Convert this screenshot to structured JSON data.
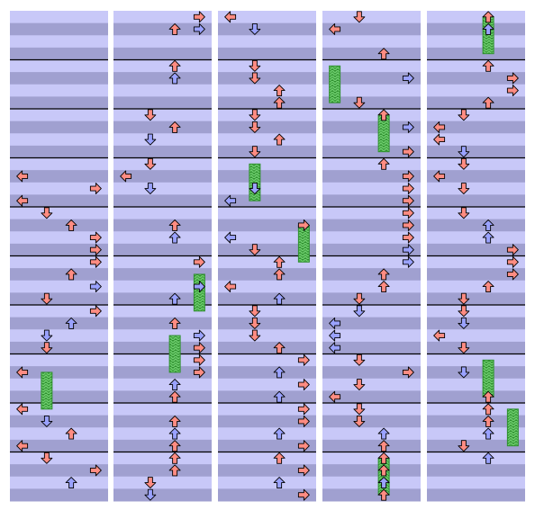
{
  "colors": {
    "background": "#ffffff",
    "stripe_light": "#c8c8f8",
    "stripe_dark": "#a0a0d0",
    "measure_line": "#000000",
    "arrow_red": "#ff8c82",
    "arrow_blue": "#9aa2ff",
    "arrow_outline": "#000000",
    "hold_green": "#2f8f2f",
    "hold_pattern": "#6fcf6f"
  },
  "chart_data": {
    "type": "other",
    "description_kind": "step-chart",
    "columns": 5,
    "lanes_per_column": 4,
    "lane_directions": [
      "left",
      "down",
      "up",
      "right"
    ],
    "measures_per_column": 10,
    "rows_per_measure": 4,
    "columns_data": [
      {
        "notes": [
          {
            "row": 13,
            "lane": 0,
            "color": "red"
          },
          {
            "row": 14,
            "lane": 3,
            "color": "red"
          },
          {
            "row": 15,
            "lane": 0,
            "color": "red"
          },
          {
            "row": 16,
            "lane": 1,
            "color": "red"
          },
          {
            "row": 17,
            "lane": 2,
            "color": "red"
          },
          {
            "row": 18,
            "lane": 3,
            "color": "red"
          },
          {
            "row": 19,
            "lane": 3,
            "color": "red"
          },
          {
            "row": 20,
            "lane": 3,
            "color": "red"
          },
          {
            "row": 21,
            "lane": 2,
            "color": "red"
          },
          {
            "row": 22,
            "lane": 3,
            "color": "blue"
          },
          {
            "row": 23,
            "lane": 1,
            "color": "red"
          },
          {
            "row": 24,
            "lane": 3,
            "color": "red"
          },
          {
            "row": 25,
            "lane": 2,
            "color": "blue"
          },
          {
            "row": 26,
            "lane": 1,
            "color": "blue"
          },
          {
            "row": 27,
            "lane": 1,
            "color": "red"
          },
          {
            "row": 29,
            "lane": 0,
            "color": "red"
          },
          {
            "row": 32,
            "lane": 0,
            "color": "red"
          },
          {
            "row": 33,
            "lane": 1,
            "color": "blue"
          },
          {
            "row": 34,
            "lane": 2,
            "color": "red"
          },
          {
            "row": 35,
            "lane": 0,
            "color": "red"
          },
          {
            "row": 36,
            "lane": 1,
            "color": "red"
          },
          {
            "row": 37,
            "lane": 3,
            "color": "red"
          },
          {
            "row": 38,
            "lane": 2,
            "color": "blue"
          }
        ],
        "holds": [
          {
            "start": 29,
            "end": 32,
            "lane": 1
          }
        ]
      },
      {
        "notes": [
          {
            "row": 0,
            "lane": 3,
            "color": "red"
          },
          {
            "row": 1,
            "lane": 2,
            "color": "red"
          },
          {
            "row": 1,
            "lane": 3,
            "color": "blue"
          },
          {
            "row": 4,
            "lane": 2,
            "color": "red"
          },
          {
            "row": 5,
            "lane": 2,
            "color": "blue"
          },
          {
            "row": 8,
            "lane": 1,
            "color": "red"
          },
          {
            "row": 9,
            "lane": 2,
            "color": "red"
          },
          {
            "row": 10,
            "lane": 1,
            "color": "blue"
          },
          {
            "row": 12,
            "lane": 1,
            "color": "red"
          },
          {
            "row": 13,
            "lane": 0,
            "color": "red"
          },
          {
            "row": 14,
            "lane": 1,
            "color": "blue"
          },
          {
            "row": 17,
            "lane": 2,
            "color": "red"
          },
          {
            "row": 18,
            "lane": 2,
            "color": "blue"
          },
          {
            "row": 20,
            "lane": 3,
            "color": "red"
          },
          {
            "row": 22,
            "lane": 3,
            "color": "blue"
          },
          {
            "row": 23,
            "lane": 2,
            "color": "blue"
          },
          {
            "row": 25,
            "lane": 2,
            "color": "red"
          },
          {
            "row": 26,
            "lane": 3,
            "color": "blue"
          },
          {
            "row": 27,
            "lane": 3,
            "color": "red"
          },
          {
            "row": 28,
            "lane": 3,
            "color": "red"
          },
          {
            "row": 29,
            "lane": 3,
            "color": "red"
          },
          {
            "row": 30,
            "lane": 2,
            "color": "blue"
          },
          {
            "row": 31,
            "lane": 2,
            "color": "red"
          },
          {
            "row": 33,
            "lane": 2,
            "color": "red"
          },
          {
            "row": 34,
            "lane": 2,
            "color": "blue"
          },
          {
            "row": 35,
            "lane": 2,
            "color": "red"
          },
          {
            "row": 36,
            "lane": 2,
            "color": "red"
          },
          {
            "row": 37,
            "lane": 2,
            "color": "red"
          },
          {
            "row": 38,
            "lane": 1,
            "color": "red"
          },
          {
            "row": 39,
            "lane": 1,
            "color": "blue"
          }
        ],
        "holds": [
          {
            "start": 21,
            "end": 24,
            "lane": 3
          },
          {
            "start": 26,
            "end": 29,
            "lane": 2
          }
        ]
      },
      {
        "notes": [
          {
            "row": 0,
            "lane": 0,
            "color": "red"
          },
          {
            "row": 1,
            "lane": 1,
            "color": "blue"
          },
          {
            "row": 4,
            "lane": 1,
            "color": "red"
          },
          {
            "row": 5,
            "lane": 1,
            "color": "red"
          },
          {
            "row": 6,
            "lane": 2,
            "color": "red"
          },
          {
            "row": 7,
            "lane": 2,
            "color": "red"
          },
          {
            "row": 8,
            "lane": 1,
            "color": "red"
          },
          {
            "row": 9,
            "lane": 1,
            "color": "red"
          },
          {
            "row": 10,
            "lane": 2,
            "color": "red"
          },
          {
            "row": 11,
            "lane": 1,
            "color": "red"
          },
          {
            "row": 14,
            "lane": 1,
            "color": "blue"
          },
          {
            "row": 15,
            "lane": 0,
            "color": "blue"
          },
          {
            "row": 17,
            "lane": 3,
            "color": "red"
          },
          {
            "row": 18,
            "lane": 0,
            "color": "blue"
          },
          {
            "row": 19,
            "lane": 1,
            "color": "red"
          },
          {
            "row": 20,
            "lane": 2,
            "color": "red"
          },
          {
            "row": 21,
            "lane": 2,
            "color": "red"
          },
          {
            "row": 22,
            "lane": 0,
            "color": "red"
          },
          {
            "row": 23,
            "lane": 2,
            "color": "blue"
          },
          {
            "row": 24,
            "lane": 1,
            "color": "red"
          },
          {
            "row": 25,
            "lane": 1,
            "color": "red"
          },
          {
            "row": 26,
            "lane": 1,
            "color": "red"
          },
          {
            "row": 27,
            "lane": 2,
            "color": "red"
          },
          {
            "row": 28,
            "lane": 3,
            "color": "red"
          },
          {
            "row": 29,
            "lane": 2,
            "color": "blue"
          },
          {
            "row": 30,
            "lane": 3,
            "color": "red"
          },
          {
            "row": 31,
            "lane": 2,
            "color": "blue"
          },
          {
            "row": 32,
            "lane": 3,
            "color": "red"
          },
          {
            "row": 33,
            "lane": 3,
            "color": "red"
          },
          {
            "row": 34,
            "lane": 2,
            "color": "blue"
          },
          {
            "row": 35,
            "lane": 3,
            "color": "red"
          },
          {
            "row": 36,
            "lane": 2,
            "color": "red"
          },
          {
            "row": 37,
            "lane": 3,
            "color": "red"
          },
          {
            "row": 38,
            "lane": 2,
            "color": "blue"
          },
          {
            "row": 39,
            "lane": 3,
            "color": "red"
          }
        ],
        "holds": [
          {
            "start": 12,
            "end": 15,
            "lane": 1
          },
          {
            "start": 17,
            "end": 20,
            "lane": 3
          }
        ]
      },
      {
        "notes": [
          {
            "row": 0,
            "lane": 1,
            "color": "red"
          },
          {
            "row": 1,
            "lane": 0,
            "color": "red"
          },
          {
            "row": 3,
            "lane": 2,
            "color": "red"
          },
          {
            "row": 5,
            "lane": 3,
            "color": "blue"
          },
          {
            "row": 7,
            "lane": 1,
            "color": "red"
          },
          {
            "row": 8,
            "lane": 2,
            "color": "red"
          },
          {
            "row": 9,
            "lane": 3,
            "color": "blue"
          },
          {
            "row": 11,
            "lane": 3,
            "color": "red"
          },
          {
            "row": 12,
            "lane": 2,
            "color": "red"
          },
          {
            "row": 13,
            "lane": 3,
            "color": "red"
          },
          {
            "row": 14,
            "lane": 3,
            "color": "red"
          },
          {
            "row": 15,
            "lane": 3,
            "color": "red"
          },
          {
            "row": 16,
            "lane": 3,
            "color": "red"
          },
          {
            "row": 17,
            "lane": 3,
            "color": "red"
          },
          {
            "row": 18,
            "lane": 3,
            "color": "red"
          },
          {
            "row": 19,
            "lane": 3,
            "color": "blue"
          },
          {
            "row": 20,
            "lane": 3,
            "color": "blue"
          },
          {
            "row": 21,
            "lane": 2,
            "color": "red"
          },
          {
            "row": 22,
            "lane": 2,
            "color": "red"
          },
          {
            "row": 23,
            "lane": 1,
            "color": "red"
          },
          {
            "row": 24,
            "lane": 1,
            "color": "blue"
          },
          {
            "row": 25,
            "lane": 0,
            "color": "blue"
          },
          {
            "row": 26,
            "lane": 0,
            "color": "blue"
          },
          {
            "row": 27,
            "lane": 0,
            "color": "blue"
          },
          {
            "row": 28,
            "lane": 1,
            "color": "red"
          },
          {
            "row": 29,
            "lane": 3,
            "color": "red"
          },
          {
            "row": 30,
            "lane": 1,
            "color": "red"
          },
          {
            "row": 31,
            "lane": 0,
            "color": "red"
          },
          {
            "row": 32,
            "lane": 1,
            "color": "red"
          },
          {
            "row": 33,
            "lane": 1,
            "color": "red"
          },
          {
            "row": 34,
            "lane": 2,
            "color": "blue"
          },
          {
            "row": 35,
            "lane": 2,
            "color": "red"
          },
          {
            "row": 36,
            "lane": 2,
            "color": "red"
          },
          {
            "row": 37,
            "lane": 2,
            "color": "red"
          },
          {
            "row": 38,
            "lane": 2,
            "color": "blue"
          },
          {
            "row": 39,
            "lane": 2,
            "color": "red"
          }
        ],
        "holds": [
          {
            "start": 4,
            "end": 7,
            "lane": 0
          },
          {
            "start": 8,
            "end": 11,
            "lane": 2
          },
          {
            "start": 36,
            "end": 39,
            "lane": 2
          }
        ]
      },
      {
        "notes": [
          {
            "row": 0,
            "lane": 2,
            "color": "red"
          },
          {
            "row": 1,
            "lane": 2,
            "color": "blue"
          },
          {
            "row": 4,
            "lane": 2,
            "color": "red"
          },
          {
            "row": 5,
            "lane": 3,
            "color": "red"
          },
          {
            "row": 6,
            "lane": 3,
            "color": "red"
          },
          {
            "row": 7,
            "lane": 2,
            "color": "red"
          },
          {
            "row": 8,
            "lane": 1,
            "color": "red"
          },
          {
            "row": 9,
            "lane": 0,
            "color": "red"
          },
          {
            "row": 10,
            "lane": 0,
            "color": "red"
          },
          {
            "row": 11,
            "lane": 1,
            "color": "blue"
          },
          {
            "row": 12,
            "lane": 1,
            "color": "red"
          },
          {
            "row": 13,
            "lane": 0,
            "color": "red"
          },
          {
            "row": 14,
            "lane": 1,
            "color": "red"
          },
          {
            "row": 16,
            "lane": 1,
            "color": "red"
          },
          {
            "row": 17,
            "lane": 2,
            "color": "blue"
          },
          {
            "row": 18,
            "lane": 2,
            "color": "blue"
          },
          {
            "row": 19,
            "lane": 3,
            "color": "red"
          },
          {
            "row": 20,
            "lane": 3,
            "color": "red"
          },
          {
            "row": 21,
            "lane": 3,
            "color": "red"
          },
          {
            "row": 22,
            "lane": 2,
            "color": "red"
          },
          {
            "row": 23,
            "lane": 1,
            "color": "red"
          },
          {
            "row": 24,
            "lane": 1,
            "color": "red"
          },
          {
            "row": 25,
            "lane": 1,
            "color": "blue"
          },
          {
            "row": 26,
            "lane": 0,
            "color": "red"
          },
          {
            "row": 27,
            "lane": 1,
            "color": "red"
          },
          {
            "row": 29,
            "lane": 1,
            "color": "blue"
          },
          {
            "row": 31,
            "lane": 2,
            "color": "red"
          },
          {
            "row": 32,
            "lane": 2,
            "color": "red"
          },
          {
            "row": 33,
            "lane": 2,
            "color": "red"
          },
          {
            "row": 34,
            "lane": 2,
            "color": "blue"
          },
          {
            "row": 35,
            "lane": 1,
            "color": "red"
          },
          {
            "row": 36,
            "lane": 2,
            "color": "blue"
          }
        ],
        "holds": [
          {
            "start": 0,
            "end": 3,
            "lane": 2
          },
          {
            "start": 28,
            "end": 31,
            "lane": 2
          },
          {
            "start": 32,
            "end": 35,
            "lane": 3
          }
        ]
      }
    ]
  }
}
